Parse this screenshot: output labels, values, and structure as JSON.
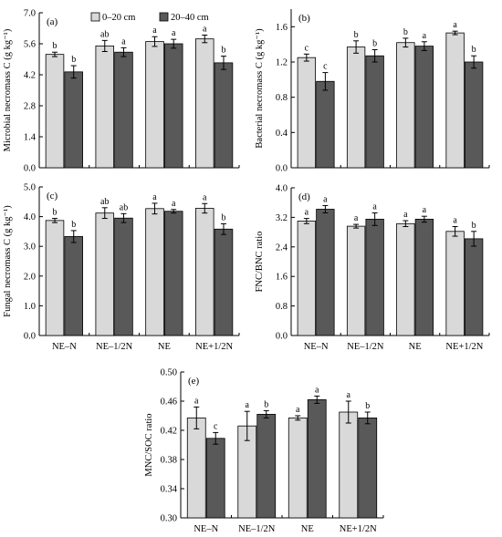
{
  "legend": {
    "items": [
      {
        "label": "0–20 cm",
        "color": "#d9d9d9"
      },
      {
        "label": "20–40 cm",
        "color": "#595959"
      }
    ]
  },
  "chart_data": [
    {
      "type": "bar",
      "panel_label": "(a)",
      "ylabel": "Microbial necromass C (g kg⁻¹)",
      "ylim": [
        0,
        7
      ],
      "yticks": [
        "0.0",
        "1.4",
        "2.8",
        "4.2",
        "5.6",
        "7.0"
      ],
      "categories": [
        "NE–N",
        "NE–1/2N",
        "NE",
        "NE+1/2N"
      ],
      "show_xticklabels": false,
      "series": [
        {
          "name": "0–20 cm",
          "values": [
            5.12,
            5.5,
            5.7,
            5.82
          ],
          "errors": [
            0.1,
            0.25,
            0.22,
            0.17
          ],
          "letters": [
            "b",
            "ab",
            "a",
            "a"
          ]
        },
        {
          "name": "20–40 cm",
          "values": [
            4.33,
            5.22,
            5.6,
            4.74
          ],
          "errors": [
            0.28,
            0.2,
            0.2,
            0.3
          ],
          "letters": [
            "b",
            "a",
            "a",
            "b"
          ]
        }
      ]
    },
    {
      "type": "bar",
      "panel_label": "(b)",
      "ylabel": "Bacterial necromass C (g kg⁻¹)",
      "ylim": [
        0,
        1.8
      ],
      "yticks": [
        "0.0",
        "0.4",
        "0.8",
        "1.2",
        "1.6"
      ],
      "categories": [
        "NE–N",
        "NE–1/2N",
        "NE",
        "NE+1/2N"
      ],
      "show_xticklabels": false,
      "series": [
        {
          "name": "0–20 cm",
          "values": [
            1.25,
            1.37,
            1.42,
            1.53
          ],
          "errors": [
            0.04,
            0.07,
            0.05,
            0.02
          ],
          "letters": [
            "c",
            "b",
            "b",
            "a"
          ]
        },
        {
          "name": "20–40 cm",
          "values": [
            0.98,
            1.27,
            1.38,
            1.2
          ],
          "errors": [
            0.1,
            0.07,
            0.05,
            0.07
          ],
          "letters": [
            "c",
            "b",
            "a",
            "b"
          ]
        }
      ]
    },
    {
      "type": "bar",
      "panel_label": "(c)",
      "ylabel": "Fungal necromass C (g kg⁻¹)",
      "ylim": [
        0,
        5
      ],
      "yticks": [
        "0.0",
        "1.0",
        "2.0",
        "3.0",
        "4.0",
        "5.0"
      ],
      "categories": [
        "NE–N",
        "NE–1/2N",
        "NE",
        "NE+1/2N"
      ],
      "show_xticklabels": true,
      "series": [
        {
          "name": "0–20 cm",
          "values": [
            3.87,
            4.12,
            4.27,
            4.28
          ],
          "errors": [
            0.07,
            0.18,
            0.18,
            0.16
          ],
          "letters": [
            "b",
            "ab",
            "a",
            "a"
          ]
        },
        {
          "name": "20–40 cm",
          "values": [
            3.33,
            3.95,
            4.18,
            3.58
          ],
          "errors": [
            0.2,
            0.15,
            0.06,
            0.18
          ],
          "letters": [
            "b",
            "ab",
            "a",
            "b"
          ]
        }
      ]
    },
    {
      "type": "bar",
      "panel_label": "(d)",
      "ylabel": "FNC/BNC ratio",
      "ylim": [
        0,
        4
      ],
      "yticks": [
        "0.0",
        "0.8",
        "1.6",
        "2.4",
        "3.2",
        "4.0"
      ],
      "categories": [
        "NE–N",
        "NE–1/2N",
        "NE",
        "NE+1/2N"
      ],
      "show_xticklabels": true,
      "series": [
        {
          "name": "0–20 cm",
          "values": [
            3.1,
            2.96,
            3.03,
            2.82
          ],
          "errors": [
            0.07,
            0.05,
            0.08,
            0.13
          ],
          "letters": [
            "a",
            "a",
            "a",
            "a"
          ]
        },
        {
          "name": "20–40 cm",
          "values": [
            3.42,
            3.15,
            3.15,
            2.62
          ],
          "errors": [
            0.1,
            0.17,
            0.08,
            0.2
          ],
          "letters": [
            "a",
            "a",
            "a",
            "b"
          ]
        }
      ]
    },
    {
      "type": "bar",
      "panel_label": "(e)",
      "ylabel": "MNC/SOC ratio",
      "ylim": [
        0.3,
        0.5
      ],
      "yticks": [
        "0.30",
        "0.34",
        "0.38",
        "0.42",
        "0.46",
        "0.50"
      ],
      "categories": [
        "NE–N",
        "NE–1/2N",
        "NE",
        "NE+1/2N"
      ],
      "show_xticklabels": true,
      "series": [
        {
          "name": "0–20 cm",
          "values": [
            0.437,
            0.426,
            0.437,
            0.445
          ],
          "errors": [
            0.015,
            0.02,
            0.003,
            0.015
          ],
          "letters": [
            "a",
            "a",
            "a",
            "a"
          ]
        },
        {
          "name": "20–40 cm",
          "values": [
            0.409,
            0.442,
            0.462,
            0.437
          ],
          "errors": [
            0.008,
            0.005,
            0.005,
            0.008
          ],
          "letters": [
            "c",
            "b",
            "a",
            "b"
          ]
        }
      ]
    }
  ]
}
